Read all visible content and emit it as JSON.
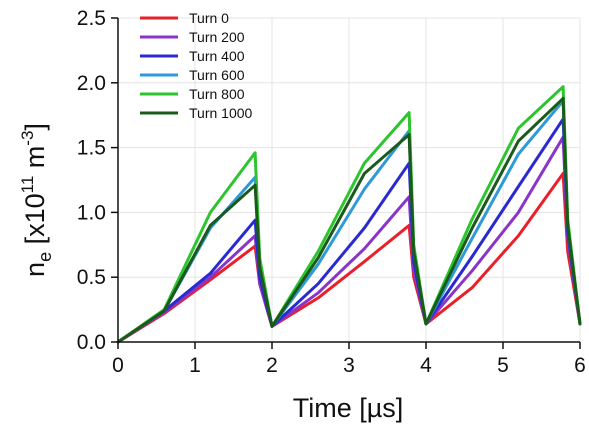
{
  "chart_data": {
    "type": "line",
    "title": "",
    "xlabel": "Time [µs]",
    "ylabel_parts": {
      "main": "n",
      "sub": "e",
      "open": " [x10",
      "exp1": "11",
      "unit": " m",
      "exp2": "-3",
      "close": "]"
    },
    "xlim": [
      0,
      6
    ],
    "ylim": [
      0,
      2.5
    ],
    "xticks": [
      0,
      1,
      2,
      3,
      4,
      5,
      6
    ],
    "xtick_labels": [
      "0",
      "1",
      "2",
      "3",
      "4",
      "5",
      "6"
    ],
    "yticks": [
      0,
      0.5,
      1.0,
      1.5,
      2.0,
      2.5
    ],
    "ytick_labels": [
      "0.0",
      "0.5",
      "1.0",
      "1.5",
      "2.0",
      "2.5"
    ],
    "grid": true,
    "legend_position": "top-left",
    "series": [
      {
        "name": "Turn 0",
        "color": "#e8202a",
        "x": [
          0,
          0.6,
          1.2,
          1.78,
          1.84,
          2.0,
          2.6,
          3.2,
          3.78,
          3.84,
          4.0,
          4.6,
          5.2,
          5.78,
          5.84,
          6.0
        ],
        "y": [
          0,
          0.22,
          0.48,
          0.74,
          0.45,
          0.12,
          0.34,
          0.62,
          0.9,
          0.5,
          0.14,
          0.42,
          0.82,
          1.3,
          0.7,
          0.14
        ]
      },
      {
        "name": "Turn 200",
        "color": "#8a35c8",
        "x": [
          0,
          0.6,
          1.2,
          1.78,
          1.84,
          2.0,
          2.6,
          3.2,
          3.78,
          3.84,
          4.0,
          4.6,
          5.2,
          5.78,
          5.84,
          6.0
        ],
        "y": [
          0,
          0.23,
          0.5,
          0.82,
          0.45,
          0.12,
          0.38,
          0.72,
          1.12,
          0.55,
          0.14,
          0.55,
          1.0,
          1.58,
          0.8,
          0.14
        ]
      },
      {
        "name": "Turn 400",
        "color": "#2a2ad0",
        "x": [
          0,
          0.6,
          1.2,
          1.78,
          1.84,
          2.0,
          2.6,
          3.2,
          3.78,
          3.84,
          4.0,
          4.6,
          5.2,
          5.78,
          5.84,
          6.0
        ],
        "y": [
          0,
          0.24,
          0.53,
          0.94,
          0.5,
          0.12,
          0.45,
          0.88,
          1.38,
          0.62,
          0.14,
          0.66,
          1.2,
          1.72,
          0.85,
          0.14
        ]
      },
      {
        "name": "Turn 600",
        "color": "#2e9ad8",
        "x": [
          0,
          0.6,
          1.2,
          1.78,
          1.84,
          2.0,
          2.6,
          3.2,
          3.78,
          3.84,
          4.0,
          4.6,
          5.2,
          5.78,
          5.84,
          6.0
        ],
        "y": [
          0,
          0.24,
          0.88,
          1.27,
          0.6,
          0.12,
          0.6,
          1.18,
          1.63,
          0.7,
          0.14,
          0.8,
          1.45,
          1.86,
          0.9,
          0.14
        ]
      },
      {
        "name": "Turn 800",
        "color": "#2ec42e",
        "x": [
          0,
          0.6,
          1.2,
          1.78,
          1.84,
          2.0,
          2.6,
          3.2,
          3.78,
          3.84,
          4.0,
          4.6,
          5.2,
          5.78,
          5.84,
          6.0
        ],
        "y": [
          0,
          0.25,
          1.0,
          1.46,
          0.65,
          0.12,
          0.7,
          1.38,
          1.77,
          0.75,
          0.14,
          0.95,
          1.65,
          1.97,
          0.95,
          0.14
        ]
      },
      {
        "name": "Turn 1000",
        "color": "#1a5a1a",
        "x": [
          0,
          0.6,
          1.2,
          1.78,
          1.84,
          2.0,
          2.6,
          3.2,
          3.78,
          3.84,
          4.0,
          4.6,
          5.2,
          5.78,
          5.84,
          6.0
        ],
        "y": [
          0,
          0.24,
          0.9,
          1.21,
          0.58,
          0.12,
          0.65,
          1.3,
          1.6,
          0.7,
          0.14,
          0.88,
          1.55,
          1.88,
          0.9,
          0.14
        ]
      }
    ]
  }
}
